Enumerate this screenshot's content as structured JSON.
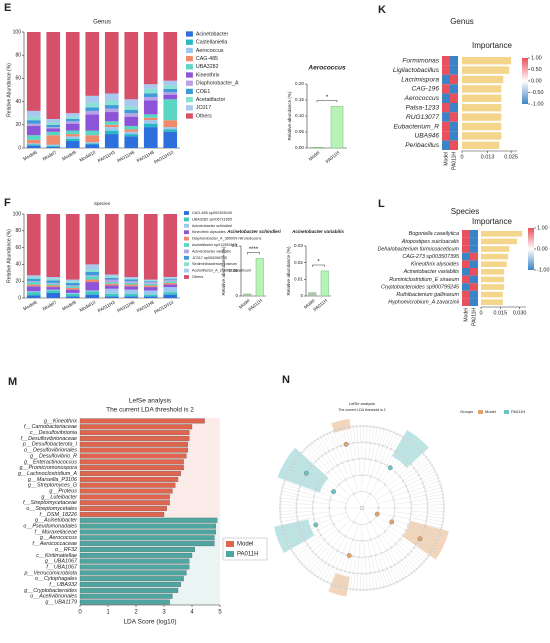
{
  "chart_data": [
    {
      "type": "stacked_bar",
      "panel": "E",
      "title": "Genus",
      "y_label": "Relative Abundance (%)",
      "categories": [
        "Model6",
        "Model7",
        "Model9",
        "Model10",
        "PA011H3",
        "PA011H6",
        "PA011H8",
        "PA011H10"
      ],
      "ylim": [
        0,
        100
      ],
      "yticks": [
        0,
        20,
        40,
        60,
        80,
        100
      ],
      "series": [
        {
          "name": "Acinetobacter",
          "color": "#2d6fdc",
          "values": [
            2,
            1,
            6,
            3,
            12,
            10,
            18,
            14
          ]
        },
        {
          "name": "Castellaniella",
          "color": "#28b8c4",
          "values": [
            1,
            1,
            2,
            1,
            3,
            2,
            3,
            2
          ]
        },
        {
          "name": "Aerococcus",
          "color": "#9cc8f0",
          "values": [
            1,
            1,
            2,
            1,
            3,
            2,
            3,
            2
          ]
        },
        {
          "name": "CAG-485",
          "color": "#f08a6a",
          "values": [
            3,
            8,
            2,
            6,
            2,
            2,
            2,
            6
          ]
        },
        {
          "name": "UBA3282",
          "color": "#5ad6c4",
          "values": [
            4,
            3,
            3,
            4,
            3,
            3,
            3,
            18
          ]
        },
        {
          "name": "Kineothrix",
          "color": "#8d54d8",
          "values": [
            8,
            3,
            6,
            14,
            8,
            8,
            12,
            4
          ]
        },
        {
          "name": "Diaphorobacter_A",
          "color": "#b9a3e6",
          "values": [
            2,
            1,
            2,
            3,
            3,
            3,
            3,
            2
          ]
        },
        {
          "name": "COE1",
          "color": "#3e9bd8",
          "values": [
            3,
            2,
            2,
            3,
            3,
            3,
            3,
            3
          ]
        },
        {
          "name": "Acetatifactor",
          "color": "#8be0d4",
          "values": [
            3,
            2,
            2,
            4,
            4,
            3,
            4,
            3
          ]
        },
        {
          "name": "JC017",
          "color": "#a9c8f0",
          "values": [
            5,
            3,
            3,
            6,
            6,
            6,
            4,
            4
          ]
        },
        {
          "name": "Others",
          "color": "#d6506a",
          "values": [
            68,
            75,
            70,
            55,
            53,
            58,
            45,
            42
          ]
        }
      ]
    },
    {
      "type": "bar",
      "title": "Aerococcus",
      "y_label": "Relative abundance (%)",
      "categories": [
        "Model",
        "PA011H"
      ],
      "values": [
        0.002,
        0.13
      ],
      "colors": [
        "#bdbdbd",
        "#b8f2b8"
      ],
      "ylim": [
        0,
        0.2
      ],
      "yticks": [
        {
          "value": 0,
          "label": "0.00"
        },
        {
          "value": 0.05,
          "label": "0.05"
        },
        {
          "value": 0.1,
          "label": "0.10"
        },
        {
          "value": 0.15,
          "label": "0.15"
        },
        {
          "value": 0.2,
          "label": "0.20"
        }
      ],
      "annotation": "*"
    },
    {
      "type": "importance",
      "panel": "K",
      "title": "Genus",
      "importance_title": "Importance",
      "categories": [
        "Formimonas",
        "Ligilactobacillus",
        "Lacrimispora",
        "CAG-196",
        "Aerococcus",
        "Palsa-1233",
        "RUG13077",
        "Eubacterium_R",
        "UBA946",
        "Peribacillus"
      ],
      "series": [
        {
          "name": "Model",
          "values": [
            1,
            1,
            -1,
            1,
            -1,
            1,
            -1,
            1,
            1,
            -1
          ]
        },
        {
          "name": "PA011H",
          "values": [
            -1,
            -1,
            1,
            -1,
            1,
            -1,
            1,
            -1,
            -1,
            1
          ]
        }
      ],
      "importance": [
        0.025,
        0.024,
        0.021,
        0.02,
        0.02,
        0.02,
        0.02,
        0.02,
        0.02,
        0.019
      ],
      "bar_color": "#f3d58c",
      "xlim": [
        0,
        0.028
      ],
      "xticks": [
        0,
        0.013,
        0.025
      ],
      "colorbar_lim": [
        -1,
        1
      ],
      "colorbar_ticks": [
        {
          "value": 1,
          "label": "1.00"
        },
        {
          "value": 0.5,
          "label": "0.50"
        },
        {
          "value": 0,
          "label": "0.00"
        },
        {
          "value": -0.5,
          "label": "-0.50"
        },
        {
          "value": -1,
          "label": "-1.00"
        }
      ]
    },
    {
      "type": "stacked_bar",
      "panel": "F",
      "title": "Species",
      "y_label": "Relative Abundance (%)",
      "categories": [
        "Model6",
        "Model7",
        "Model9",
        "Model10",
        "PA011H3",
        "PA011H6",
        "PA011H8",
        "PA011H10"
      ],
      "ylim": [
        0,
        100
      ],
      "yticks": [
        0,
        20,
        40,
        60,
        80,
        100
      ],
      "series": [
        {
          "name": "CAG-485 sp002493045",
          "color": "#2d6fdc",
          "values": [
            3,
            6,
            2,
            4,
            2,
            2,
            2,
            4
          ]
        },
        {
          "name": "UBA3282 sp006711855",
          "color": "#3ec9c0",
          "values": [
            4,
            3,
            3,
            4,
            3,
            3,
            2,
            3
          ]
        },
        {
          "name": "Acinetobacter schindleri",
          "color": "#9cc8f0",
          "values": [
            1,
            1,
            1,
            1,
            6,
            5,
            5,
            6
          ]
        },
        {
          "name": "Kineothrix alysoides",
          "color": "#8d54d8",
          "values": [
            6,
            3,
            4,
            10,
            4,
            4,
            4,
            3
          ]
        },
        {
          "name": "Diaphorobacter_A_385009 nitroreducens",
          "color": "#f08a6a",
          "values": [
            2,
            2,
            2,
            3,
            2,
            2,
            2,
            2
          ]
        },
        {
          "name": "Acetatifactor sp011959105",
          "color": "#5ad6c4",
          "values": [
            3,
            2,
            2,
            4,
            2,
            2,
            2,
            2
          ]
        },
        {
          "name": "Acinetobacter variabilis",
          "color": "#b9a3e6",
          "values": [
            1,
            1,
            1,
            1,
            3,
            2,
            2,
            2
          ]
        },
        {
          "name": "JC017 sp006266715",
          "color": "#3e9bd8",
          "values": [
            3,
            3,
            3,
            4,
            2,
            2,
            1,
            1
          ]
        },
        {
          "name": "Sediminibacterium roseum",
          "color": "#8be0d4",
          "values": [
            2,
            2,
            2,
            3,
            2,
            1,
            1,
            1
          ]
        },
        {
          "name": "Acetatifactor_A_210862 aerobicum",
          "color": "#a9c8f0",
          "values": [
            2,
            2,
            2,
            6,
            2,
            2,
            1,
            1
          ]
        },
        {
          "name": "Others",
          "color": "#d6506a",
          "values": [
            73,
            75,
            78,
            60,
            72,
            75,
            78,
            75
          ]
        }
      ]
    },
    {
      "type": "bar",
      "title": "Acinetobacter schindleri",
      "y_label": "Relative abundance (%)",
      "categories": [
        "Model",
        "PA011H"
      ],
      "values": [
        0.004,
        0.075
      ],
      "colors": [
        "#bdbdbd",
        "#b8f2b8"
      ],
      "ylim": [
        0,
        0.1
      ],
      "yticks": [
        0,
        0.05,
        0.1
      ],
      "annotation": "****"
    },
    {
      "type": "bar",
      "title": "Acinetobacter variabilis",
      "y_label": "Relative abundance (%)",
      "categories": [
        "Model",
        "PA011H"
      ],
      "values": [
        0.002,
        0.015
      ],
      "colors": [
        "#bdbdbd",
        "#b8f2b8"
      ],
      "ylim": [
        0,
        0.03
      ],
      "yticks": [
        0,
        0.01,
        0.02,
        0.03
      ],
      "annotation": "*"
    },
    {
      "type": "importance",
      "panel": "L",
      "title": "Species",
      "importance_title": "Importance",
      "categories": [
        "Bogoriella caseilytica",
        "Atopostipes suicloacalis",
        "Dehalobacterium formicoaceticum",
        "CAG-273 sp003507395",
        "Kineothrix alysoides",
        "Acinetobacter variabilis",
        "Ruminiclostridium_E siraeum",
        "Cryptobacteroides sp900799245",
        "Ruthibacterium gallinarum",
        "Hyphomicrobium_A zavarzinii"
      ],
      "series": [
        {
          "name": "Model",
          "values": [
            1,
            1,
            1,
            -1,
            1,
            -1,
            1,
            -1,
            1,
            1
          ]
        },
        {
          "name": "PA011H",
          "values": [
            -1,
            -1,
            -1,
            1,
            -1,
            1,
            -1,
            1,
            -1,
            -1
          ]
        }
      ],
      "importance": [
        0.032,
        0.028,
        0.022,
        0.021,
        0.02,
        0.018,
        0.018,
        0.018,
        0.017,
        0.017
      ],
      "bar_color": "#f3d58c",
      "xlim": [
        0,
        0.035
      ],
      "xticks": [
        0,
        0.015,
        {
          "value": 0.03,
          "label": "0.030"
        }
      ],
      "colorbar_lim": [
        -1,
        1
      ],
      "colorbar_ticks": [
        {
          "value": 1,
          "label": "1.00"
        },
        {
          "value": 0,
          "label": "0.00"
        },
        {
          "value": -1,
          "label": "-1.00"
        }
      ]
    },
    {
      "type": "lda",
      "panel": "M",
      "title": "LefSe analysis",
      "subtitle": "The current LDA threshold is 2",
      "x_label": "LDA Score (log10)",
      "xlim": [
        0,
        5
      ],
      "xticks": [
        0,
        1,
        2,
        3,
        4,
        5
      ],
      "series": [
        {
          "name": "Model",
          "color": "#e0654f",
          "categories": [
            "g__Kineothrix",
            "f__Carnobacteriaceae",
            "c__Desulfovibrionia",
            "f__Desulfovibrionaceae",
            "p__Desulfobacterota_I",
            "o__Desulfovibrionales",
            "g__Desulfovibrio_R",
            "g__Enteractinococcus",
            "g__Promicromonospora",
            "g__Lachnoclostridium_A",
            "g__Marseilla_P3106",
            "g__Streptomyces_G",
            "g__Proteus",
            "g__Luteibacter",
            "f__Streptomycetaceae",
            "o__Streptomycetales",
            "f__DSM_18226"
          ],
          "values": [
            4.45,
            4.0,
            3.9,
            3.9,
            3.85,
            3.85,
            3.8,
            3.7,
            3.7,
            3.6,
            3.5,
            3.4,
            3.3,
            3.2,
            3.2,
            3.1,
            3.0
          ]
        },
        {
          "name": "PA011H",
          "color": "#4fa6a0",
          "categories": [
            "g__Acinetobacter",
            "o__Pseudomonadales",
            "f__Moraxellaceae",
            "g__Aerococcus",
            "f__Aerococcaceae",
            "o__RF32",
            "c__Kiritimatiellae",
            "g__UBA1067",
            "f__UBA1067",
            "p__Verrucomicrobiota",
            "o__Cytophagales",
            "f__UBA932",
            "g__Cryptobacteroides",
            "o__Acetivibrionales",
            "g__UBA1179"
          ],
          "values": [
            4.9,
            4.85,
            4.85,
            4.8,
            4.8,
            4.1,
            4.0,
            3.9,
            3.9,
            3.8,
            3.7,
            3.6,
            3.5,
            3.3,
            3.2
          ]
        }
      ]
    },
    {
      "type": "cladogram",
      "panel": "N",
      "title": "LefSe analysis",
      "subtitle": "The current LDA threshold is 2",
      "legend_title": "Groups",
      "groups": [
        {
          "name": "Model",
          "color": "#e3a46b"
        },
        {
          "name": "PA011H",
          "color": "#6cc3c3"
        }
      ]
    }
  ]
}
